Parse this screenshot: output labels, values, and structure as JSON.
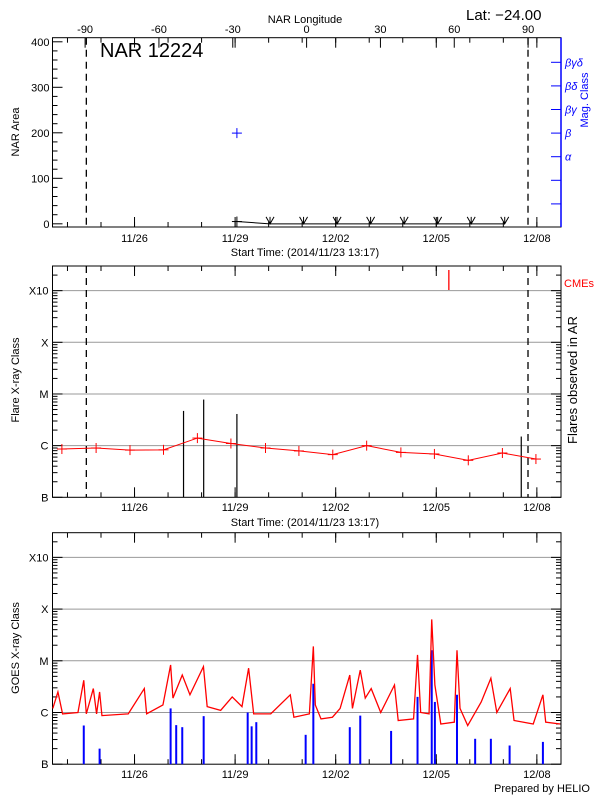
{
  "header": {
    "lat_label": "Lat: −24.00",
    "region_label": "NAR 12224",
    "credit": "Prepared by HELIO"
  },
  "colors": {
    "flare_series": "#ff0000",
    "mag_class": "#0000ff",
    "goes_flux": "#ff0000",
    "goes_events": "#0000ff",
    "cme": "#ff0000",
    "grid": "#999999"
  },
  "chart_data": [
    {
      "type": "scatter",
      "xlabel": "Start Time: (2014/11/23 13:17)",
      "ylabel": "NAR Area",
      "ylim": [
        -7,
        409
      ],
      "y_ticks": [
        "0",
        "100",
        "200",
        "300",
        "400"
      ],
      "x_range": [
        "2014-11-23 13:17",
        "2014-12-08 17:17"
      ],
      "x_ticks": [
        "11/26",
        "11/29",
        "12/02",
        "12/05",
        "12/08"
      ],
      "top_axis": {
        "label": "NAR Longitude",
        "ticks": [
          "-90",
          "-60",
          "-30",
          "0",
          "30",
          "60",
          "90"
        ]
      },
      "right_axis": {
        "label": "Mag. Class",
        "ticks": [
          "α",
          "β",
          "βγ",
          "βδ",
          "βγδ"
        ],
        "color": "#0000ff"
      },
      "limb_lines": [
        "2014-11-24 13:30",
        "2014-12-07 17:40"
      ],
      "area": [
        {
          "t": "2014-11-29 01:17",
          "value": 5,
          "marker": "plus"
        },
        {
          "t": "2014-11-30 01:00",
          "value": 0,
          "marker": "down"
        },
        {
          "t": "2014-12-01 01:00",
          "value": 0,
          "marker": "down"
        },
        {
          "t": "2014-12-02 01:00",
          "value": 0,
          "marker": "down"
        },
        {
          "t": "2014-12-03 01:00",
          "value": 0,
          "marker": "down"
        },
        {
          "t": "2014-12-04 01:00",
          "value": 0,
          "marker": "down"
        },
        {
          "t": "2014-12-05 01:00",
          "value": 0,
          "marker": "down"
        },
        {
          "t": "2014-12-06 01:00",
          "value": 0,
          "marker": "down"
        },
        {
          "t": "2014-12-07 01:00",
          "value": 0,
          "marker": "down"
        }
      ],
      "mag_class": [
        {
          "t": "2014-11-29 01:17",
          "class": "β"
        }
      ]
    },
    {
      "type": "line",
      "xlabel": "Start Time: (2014/11/23 13:17)",
      "ylabel": "Flare X-ray Class",
      "y2label": "Flares observed in AR",
      "cme_label": "CMEs",
      "y_scale": "log",
      "ylim": [
        "B1.0",
        "X30"
      ],
      "y_ticks": [
        "B",
        "C",
        "M",
        "X",
        "X10"
      ],
      "grid": true,
      "x_range": [
        "2014-11-23 13:17",
        "2014-12-08 17:17"
      ],
      "x_ticks": [
        "11/26",
        "11/29",
        "12/02",
        "12/05",
        "12/08"
      ],
      "limb_lines": [
        "2014-11-24 13:30",
        "2014-12-07 17:40"
      ],
      "series": [
        {
          "t": "2014-11-23 20:00",
          "class": "B8.6"
        },
        {
          "t": "2014-11-24 20:30",
          "class": "B9.0"
        },
        {
          "t": "2014-11-25 20:45",
          "class": "B8.2"
        },
        {
          "t": "2014-11-26 20:45",
          "class": "B8.3"
        },
        {
          "t": "2014-11-27 21:00",
          "class": "C1.4"
        },
        {
          "t": "2014-11-28 21:00",
          "class": "C1.1"
        },
        {
          "t": "2014-11-29 21:45",
          "class": "B9.0"
        },
        {
          "t": "2014-11-30 21:40",
          "class": "B7.9"
        },
        {
          "t": "2014-12-01 21:55",
          "class": "B6.7"
        },
        {
          "t": "2014-12-02 22:10",
          "class": "C1.0"
        },
        {
          "t": "2014-12-03 22:40",
          "class": "B7.4"
        },
        {
          "t": "2014-12-04 22:40",
          "class": "B6.9"
        },
        {
          "t": "2014-12-05 22:55",
          "class": "B5.2"
        },
        {
          "t": "2014-12-06 23:20",
          "class": "B7.2"
        },
        {
          "t": "2014-12-07 23:20",
          "class": "B5.5"
        }
      ],
      "flares": [
        {
          "t": "2014-11-27 11:05",
          "class": "C4.7"
        },
        {
          "t": "2014-11-28 01:30",
          "class": "C7.8"
        },
        {
          "t": "2014-11-29 01:17",
          "class": "C4.1"
        },
        {
          "t": "2014-12-07 12:50",
          "class": "C1.5"
        }
      ],
      "cmes": [
        "2014-12-05 09:00"
      ]
    },
    {
      "type": "line",
      "ylabel": "GOES X-ray Class",
      "y_scale": "log",
      "ylim": [
        "B1.0",
        "X30"
      ],
      "y_ticks": [
        "B",
        "C",
        "M",
        "X",
        "X10"
      ],
      "grid": true,
      "x_range": [
        "2014-11-23 13:17",
        "2014-12-08 17:17"
      ],
      "x_ticks": [
        "11/26",
        "11/29",
        "12/02",
        "12/05",
        "12/08"
      ],
      "flux": [
        [
          "2014-11-23 13:30",
          "C1.2"
        ],
        [
          "2014-11-23 17:10",
          "C2.5"
        ],
        [
          "2014-11-23 20:30",
          "B9.4"
        ],
        [
          "2014-11-24 07:30",
          "C1.0"
        ],
        [
          "2014-11-24 11:40",
          "C4.2"
        ],
        [
          "2014-11-24 13:30",
          "B9.4"
        ],
        [
          "2014-11-24 18:30",
          "C2.9"
        ],
        [
          "2014-11-24 20:50",
          "B9.4"
        ],
        [
          "2014-11-24 23:00",
          "C2.5"
        ],
        [
          "2014-11-25 00:40",
          "B8.7"
        ],
        [
          "2014-11-25 19:30",
          "B9.4"
        ],
        [
          "2014-11-26 07:00",
          "C2.9"
        ],
        [
          "2014-11-26 08:40",
          "B9.4"
        ],
        [
          "2014-11-26 20:20",
          "C1.4"
        ],
        [
          "2014-11-27 01:50",
          "C8.3"
        ],
        [
          "2014-11-27 03:30",
          "C1.9"
        ],
        [
          "2014-11-27 10:10",
          "C5.3"
        ],
        [
          "2014-11-27 15:40",
          "C2.2"
        ],
        [
          "2014-11-28 01:20",
          "C7.7"
        ],
        [
          "2014-11-28 04:00",
          "C1.3"
        ],
        [
          "2014-11-28 13:40",
          "C1.1"
        ],
        [
          "2014-11-28 21:55",
          "C2.0"
        ],
        [
          "2014-11-29 04:55",
          "C1.3"
        ],
        [
          "2014-11-29 09:40",
          "C7.2"
        ],
        [
          "2014-11-29 13:17",
          "B9.4"
        ],
        [
          "2014-11-30 01:30",
          "B9.4"
        ],
        [
          "2014-11-30 15:30",
          "C2.2"
        ],
        [
          "2014-11-30 18:05",
          "B8.1"
        ],
        [
          "2014-12-01 05:10",
          "B9.4"
        ],
        [
          "2014-12-01 08:00",
          "M1.9"
        ],
        [
          "2014-12-01 09:25",
          "C1.4"
        ],
        [
          "2014-12-01 13:30",
          "B7.5"
        ],
        [
          "2014-12-01 21:40",
          "B8.1"
        ],
        [
          "2014-12-02 03:10",
          "C1.2"
        ],
        [
          "2014-12-02 10:05",
          "C5.3"
        ],
        [
          "2014-12-02 12:00",
          "C1.2"
        ],
        [
          "2014-12-02 17:35",
          "C6.6"
        ],
        [
          "2014-12-02 21:10",
          "C1.9"
        ],
        [
          "2014-12-03 01:25",
          "C2.9"
        ],
        [
          "2014-12-03 08:15",
          "C1.0"
        ],
        [
          "2014-12-03 18:05",
          "C3.4"
        ],
        [
          "2014-12-03 20:45",
          "B7.0"
        ],
        [
          "2014-12-04 07:45",
          "B7.5"
        ],
        [
          "2014-12-04 10:35",
          "M1.3"
        ],
        [
          "2014-12-04 12:50",
          "C1.0"
        ],
        [
          "2014-12-04 18:50",
          "B9.4"
        ],
        [
          "2014-12-04 20:45",
          "M6.3"
        ],
        [
          "2014-12-04 23:00",
          "C3.4"
        ],
        [
          "2014-12-05 03:15",
          "B6.0"
        ],
        [
          "2014-12-05 12:55",
          "B6.5"
        ],
        [
          "2014-12-05 14:50",
          "M1.6"
        ],
        [
          "2014-12-05 17:00",
          "C1.2"
        ],
        [
          "2014-12-05 22:30",
          "B5.6"
        ],
        [
          "2014-12-06 08:10",
          "C1.6"
        ],
        [
          "2014-12-06 15:05",
          "C4.6"
        ],
        [
          "2014-12-06 19:20",
          "C1.0"
        ],
        [
          "2014-12-07 04:55",
          "C2.9"
        ],
        [
          "2014-12-07 07:40",
          "B7.0"
        ],
        [
          "2014-12-07 21:25",
          "B6.0"
        ],
        [
          "2014-12-08 04:20",
          "C2.2"
        ],
        [
          "2014-12-08 06:20",
          "B6.5"
        ],
        [
          "2014-12-08 16:40",
          "B6.0"
        ]
      ],
      "events": [
        [
          "2014-11-24 11:40",
          "B5.6"
        ],
        [
          "2014-11-24 23:00",
          "B2.0"
        ],
        [
          "2014-11-27 01:50",
          "C1.2"
        ],
        [
          "2014-11-27 05:50",
          "B5.7"
        ],
        [
          "2014-11-27 10:10",
          "B5.2"
        ],
        [
          "2014-11-28 01:30",
          "B8.5"
        ],
        [
          "2014-11-29 09:00",
          "C1.0"
        ],
        [
          "2014-11-29 11:50",
          "B5.4"
        ],
        [
          "2014-11-29 15:10",
          "B6.5"
        ],
        [
          "2014-12-01 02:30",
          "B3.7"
        ],
        [
          "2014-12-01 08:00",
          "C3.6"
        ],
        [
          "2014-12-02 10:05",
          "B5.2"
        ],
        [
          "2014-12-02 17:35",
          "B8.7"
        ],
        [
          "2014-12-03 15:40",
          "B4.4"
        ],
        [
          "2014-12-04 10:35",
          "C2.0"
        ],
        [
          "2014-12-04 20:45",
          "M1.6"
        ],
        [
          "2014-12-04 23:00",
          "C1.6"
        ],
        [
          "2014-12-05 14:50",
          "C2.2"
        ],
        [
          "2014-12-06 03:50",
          "B3.1"
        ],
        [
          "2014-12-06 15:05",
          "B3.1"
        ],
        [
          "2014-12-07 04:30",
          "B2.3"
        ],
        [
          "2014-12-08 04:20",
          "B2.7"
        ]
      ]
    }
  ]
}
